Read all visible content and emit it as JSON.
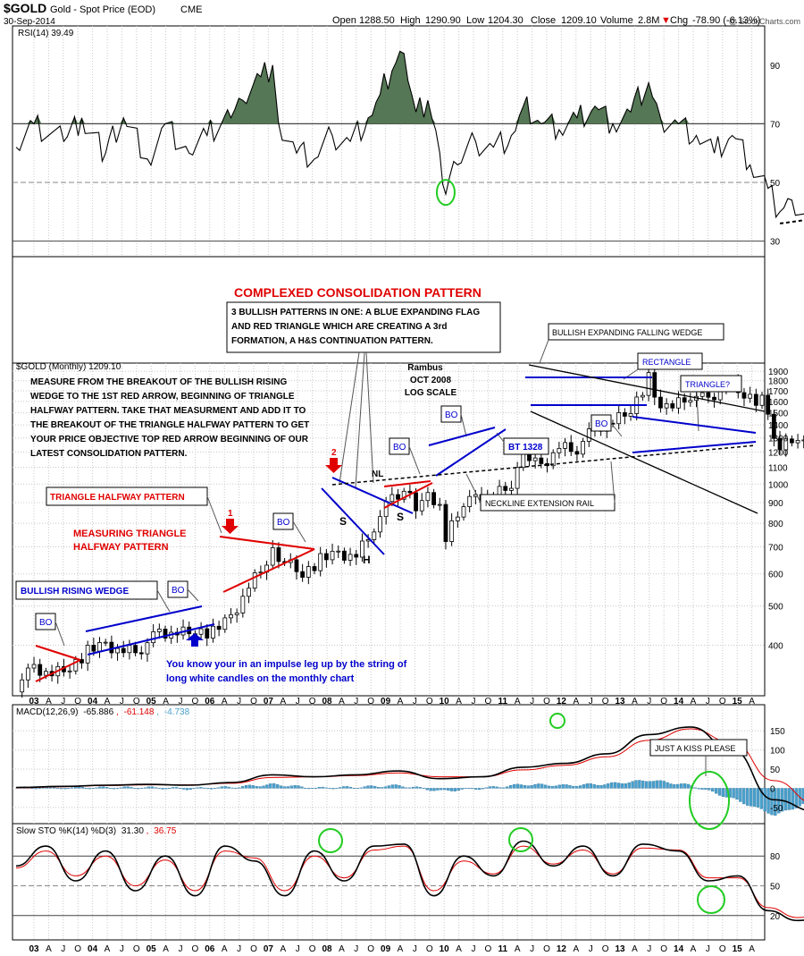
{
  "header": {
    "symbol": "$GOLD",
    "name": "Gold - Spot Price (EOD)",
    "exchange": "CME",
    "date": "30-Sep-2014",
    "watermark": "@ StockCharts.com",
    "open_label": "Open",
    "open": "1288.50",
    "high_label": "High",
    "high": "1290.90",
    "low_label": "Low",
    "low": "1204.30",
    "close_label": "Close",
    "close": "1209.10",
    "volume_label": "Volume",
    "volume": "2.8M",
    "chg_label": "Chg",
    "chg": "-78.90 (-6.13%)",
    "chg_arrow": "▼"
  },
  "colors": {
    "price_black": "#000000",
    "red": "#e00000",
    "blue": "#0000cc",
    "rsi_fill": "#557755",
    "hist": "#4aa0cc",
    "green": "#22cc22",
    "grid": "#c8c8c8"
  },
  "chart_data": [
    {
      "type": "line",
      "panel": "rsi",
      "legend": "RSI(14) 39.49",
      "y_ticks": [
        "90",
        "70",
        "50",
        "30"
      ],
      "ylim": [
        25,
        100
      ],
      "levels": [
        70,
        50,
        30
      ],
      "x": [
        "2002-10",
        "2003-01",
        "2003-06",
        "2003-09",
        "2004-01",
        "2004-04",
        "2004-08",
        "2004-11",
        "2005-03",
        "2005-06",
        "2005-10",
        "2005-12",
        "2006-03",
        "2006-05",
        "2006-06",
        "2006-09",
        "2006-12",
        "2007-03",
        "2007-06",
        "2007-09",
        "2007-11",
        "2008-01",
        "2008-03",
        "2008-05",
        "2008-07",
        "2008-09",
        "2008-10",
        "2008-12",
        "2009-03",
        "2009-06",
        "2009-09",
        "2009-11",
        "2010-02",
        "2010-05",
        "2010-08",
        "2010-11",
        "2011-02",
        "2011-05",
        "2011-08",
        "2011-10",
        "2012-01",
        "2012-04",
        "2012-07",
        "2012-10",
        "2013-01",
        "2013-04",
        "2013-06",
        "2013-08",
        "2013-11",
        "2014-01",
        "2014-03",
        "2014-06",
        "2014-09"
      ],
      "values": [
        62,
        70,
        64,
        72,
        60,
        72,
        58,
        70,
        60,
        66,
        72,
        78,
        86,
        90,
        70,
        60,
        58,
        66,
        64,
        72,
        80,
        88,
        94,
        74,
        78,
        60,
        46,
        56,
        64,
        62,
        66,
        76,
        70,
        68,
        72,
        76,
        70,
        74,
        84,
        72,
        70,
        66,
        60,
        66,
        56,
        48,
        40,
        44,
        36,
        44,
        42,
        44,
        40
      ],
      "annotations": [
        {
          "type": "circle",
          "date": "2008-10",
          "value": 46
        },
        {
          "type": "trendline_dashed",
          "from": [
            "2013-06",
            36
          ],
          "to": [
            "2014-12",
            41
          ]
        }
      ]
    },
    {
      "type": "candlestick",
      "panel": "price",
      "legend": "$GOLD (Monthly) 1209.10",
      "scale": "log",
      "ylim": [
        300,
        1950
      ],
      "y_ticks": [
        1900,
        1800,
        1700,
        1600,
        1500,
        1400,
        1300,
        1200,
        1100,
        1000,
        900,
        800,
        700,
        600,
        500,
        400
      ],
      "x_ticks": [
        "03",
        "A",
        "J",
        "O",
        "04",
        "A",
        "J",
        "O",
        "05",
        "A",
        "J",
        "O",
        "06",
        "A",
        "J",
        "O",
        "07",
        "A",
        "J",
        "O",
        "08",
        "A",
        "J",
        "O",
        "09",
        "A",
        "J",
        "O",
        "10",
        "A",
        "J",
        "O",
        "11",
        "A",
        "J",
        "O",
        "12",
        "A",
        "J",
        "O",
        "13",
        "A",
        "J",
        "O",
        "14",
        "A",
        "J",
        "O",
        "15",
        "A",
        "J"
      ],
      "x": [
        "2002-10",
        "2003-01",
        "2003-04",
        "2003-07",
        "2003-10",
        "2004-01",
        "2004-04",
        "2004-07",
        "2004-10",
        "2005-01",
        "2005-04",
        "2005-07",
        "2005-10",
        "2006-01",
        "2006-04",
        "2006-05",
        "2006-07",
        "2006-10",
        "2007-01",
        "2007-04",
        "2007-07",
        "2007-10",
        "2008-01",
        "2008-03",
        "2008-05",
        "2008-07",
        "2008-09",
        "2008-10",
        "2008-12",
        "2009-03",
        "2009-06",
        "2009-09",
        "2009-11",
        "2010-02",
        "2010-05",
        "2010-08",
        "2010-11",
        "2011-02",
        "2011-05",
        "2011-08",
        "2011-09",
        "2011-12",
        "2012-03",
        "2012-06",
        "2012-09",
        "2012-12",
        "2013-03",
        "2013-04",
        "2013-06",
        "2013-09",
        "2013-12",
        "2014-03",
        "2014-06",
        "2014-09"
      ],
      "values": [
        318,
        350,
        336,
        354,
        386,
        402,
        388,
        395,
        428,
        424,
        436,
        430,
        470,
        560,
        654,
        680,
        640,
        603,
        650,
        675,
        668,
        790,
        920,
        960,
        880,
        920,
        880,
        730,
        860,
        920,
        930,
        1000,
        1180,
        1110,
        1240,
        1230,
        1370,
        1410,
        1530,
        1820,
        1620,
        1560,
        1670,
        1600,
        1770,
        1670,
        1600,
        1470,
        1230,
        1330,
        1200,
        1290,
        1320,
        1209
      ],
      "annotations": [
        {
          "text": "COMPLEXED CONSOLIDATION PATTERN",
          "color": "red"
        },
        {
          "text": "3 BULLISH PATTERNS IN ONE:  A BLUE EXPANDING FLAG AND RED TRIANGLE WHICH ARE CREATING A 3rd FORMATION, A H&S CONTINUATION PATTERN."
        },
        {
          "text": "MEASURE FROM THE BREAKOUT OF THE BULLISH RISING WEDGE TO THE 1ST RED ARROW, BEGINNING OF TRIANGLE HALFWAY PATTERN. TAKE THAT MEASURMENT AND ADD IT TO THE BREAKOUT OF THE TRIANGLE HALFWAY PATTERN TO GET YOUR PRICE OBJECTIVE TOP RED ARROW BEGINNING OF OUR LATEST CONSOLIDATION PATTERN."
        },
        {
          "text": "Rambus OCT 2008 LOG SCALE"
        },
        {
          "text": "TRIANGLE HALFWAY PATTERN",
          "color": "red"
        },
        {
          "text": "MEASURING TRIANGLE HALFWAY PATTERN",
          "color": "red"
        },
        {
          "text": "BULLISH RISING WEDGE",
          "color": "blue"
        },
        {
          "text": "You know your in an impulse leg up by the string of long white candles on the monthly chart",
          "color": "blue"
        },
        {
          "text": "BULLISH EXPANDING FALLING WEDGE"
        },
        {
          "text": "RECTANGLE",
          "color": "blue"
        },
        {
          "text": "TRIANGLE?",
          "color": "blue"
        },
        {
          "text": "BT 1328",
          "color": "blue"
        },
        {
          "text": "NECKLINE EXTENSION RAIL"
        },
        {
          "text": "BO",
          "count": 7
        },
        {
          "text": "NL"
        },
        {
          "text": "S",
          "count": 2
        },
        {
          "text": "H"
        },
        {
          "text": "1",
          "color": "red"
        },
        {
          "text": "2",
          "color": "red"
        }
      ]
    },
    {
      "type": "line+histogram",
      "panel": "macd",
      "legend": {
        "name": "MACD(12,26,9)",
        "macd": "-65.886",
        "signal": "-61.148",
        "hist": "-4.738"
      },
      "y_ticks": [
        "150",
        "100",
        "50",
        "0",
        "-50"
      ],
      "ylim": [
        -90,
        190
      ],
      "x": [
        "2002-10",
        "2003-06",
        "2004-01",
        "2004-08",
        "2005-03",
        "2005-10",
        "2006-05",
        "2006-12",
        "2007-07",
        "2008-02",
        "2008-09",
        "2009-04",
        "2009-11",
        "2010-06",
        "2011-01",
        "2011-08",
        "2012-03",
        "2012-10",
        "2013-05",
        "2013-12",
        "2014-07",
        "2014-09"
      ],
      "macd": [
        2,
        5,
        8,
        10,
        8,
        15,
        35,
        30,
        35,
        45,
        25,
        30,
        55,
        65,
        90,
        140,
        160,
        100,
        -30,
        -60,
        -58,
        -66
      ],
      "signal": [
        1,
        4,
        7,
        9,
        9,
        13,
        28,
        30,
        33,
        40,
        30,
        30,
        48,
        60,
        82,
        125,
        155,
        120,
        20,
        -40,
        -55,
        -61
      ],
      "annotations": [
        {
          "text": "JUST A KISS PLEASE"
        }
      ]
    },
    {
      "type": "line",
      "panel": "stochastic",
      "legend": {
        "name": "Slow STO %K(14) %D(3)",
        "k": "31.30",
        "d": "36.75"
      },
      "y_ticks": [
        "80",
        "50",
        "20"
      ],
      "ylim": [
        0,
        100
      ],
      "levels": [
        80,
        50,
        20
      ],
      "x": [
        "2002-10",
        "2003-03",
        "2003-08",
        "2004-01",
        "2004-06",
        "2004-11",
        "2005-04",
        "2005-09",
        "2006-02",
        "2006-07",
        "2006-12",
        "2007-05",
        "2007-10",
        "2008-03",
        "2008-08",
        "2009-01",
        "2009-06",
        "2009-11",
        "2010-04",
        "2010-09",
        "2011-02",
        "2011-07",
        "2012-01",
        "2012-06",
        "2012-11",
        "2013-04",
        "2013-09",
        "2014-02",
        "2014-07",
        "2014-09"
      ],
      "k": [
        70,
        90,
        55,
        85,
        45,
        80,
        40,
        90,
        75,
        40,
        85,
        55,
        90,
        92,
        40,
        80,
        60,
        95,
        70,
        90,
        60,
        92,
        85,
        55,
        60,
        25,
        15,
        20,
        45,
        31
      ],
      "d": [
        68,
        85,
        60,
        80,
        50,
        76,
        45,
        85,
        78,
        45,
        80,
        58,
        86,
        90,
        45,
        75,
        62,
        90,
        72,
        86,
        62,
        88,
        86,
        58,
        58,
        28,
        18,
        22,
        40,
        37
      ]
    }
  ],
  "time_axis": [
    "03",
    "A",
    "J",
    "O",
    "04",
    "A",
    "J",
    "O",
    "05",
    "A",
    "J",
    "O",
    "06",
    "A",
    "J",
    "O",
    "07",
    "A",
    "J",
    "O",
    "08",
    "A",
    "J",
    "O",
    "09",
    "A",
    "J",
    "O",
    "10",
    "A",
    "J",
    "O",
    "11",
    "A",
    "J",
    "O",
    "12",
    "A",
    "J",
    "O",
    "13",
    "A",
    "J",
    "O",
    "14",
    "A",
    "J",
    "O",
    "15",
    "A",
    "J"
  ],
  "labels": {
    "title_red": "COMPLEXED CONSOLIDATION PATTERN",
    "box_main": [
      "3 BULLISH PATTERNS IN ONE:  A BLUE EXPANDING FLAG",
      "AND RED TRIANGLE WHICH ARE CREATING A 3rd",
      "FORMATION, A H&S CONTINUATION PATTERN."
    ],
    "measure": [
      "MEASURE FROM THE BREAKOUT OF THE BULLISH RISING",
      "WEDGE TO THE 1ST RED ARROW, BEGINNING OF TRIANGLE",
      "HALFWAY PATTERN. TAKE THAT MEASURMENT AND ADD IT TO",
      "THE BREAKOUT OF THE TRIANGLE HALFWAY PATTERN TO GET",
      "YOUR PRICE OBJECTIVE TOP RED ARROW BEGINNING OF OUR",
      "LATEST CONSOLIDATION PATTERN."
    ],
    "rambus": [
      "Rambus",
      "OCT 2008",
      "LOG SCALE"
    ],
    "triangle_halfway": "TRIANGLE HALFWAY PATTERN",
    "measuring_triangle": [
      "MEASURING TRIANGLE",
      "HALFWAY PATTERN"
    ],
    "rising_wedge": "BULLISH RISING WEDGE",
    "impulse": [
      "You know your in an impulse leg up by the string of",
      "long white candles on the monthly chart"
    ],
    "expanding_wedge": "BULLISH EXPANDING FALLING WEDGE",
    "rectangle": "RECTANGLE",
    "triangle_q": "TRIANGLE?",
    "bt": "BT 1328",
    "neckline": "NECKLINE EXTENSION RAIL",
    "bo": "BO",
    "nl": "NL",
    "s": "S",
    "h": "H",
    "arrow1": "1",
    "arrow2": "2",
    "kiss": "JUST A KISS PLEASE"
  }
}
